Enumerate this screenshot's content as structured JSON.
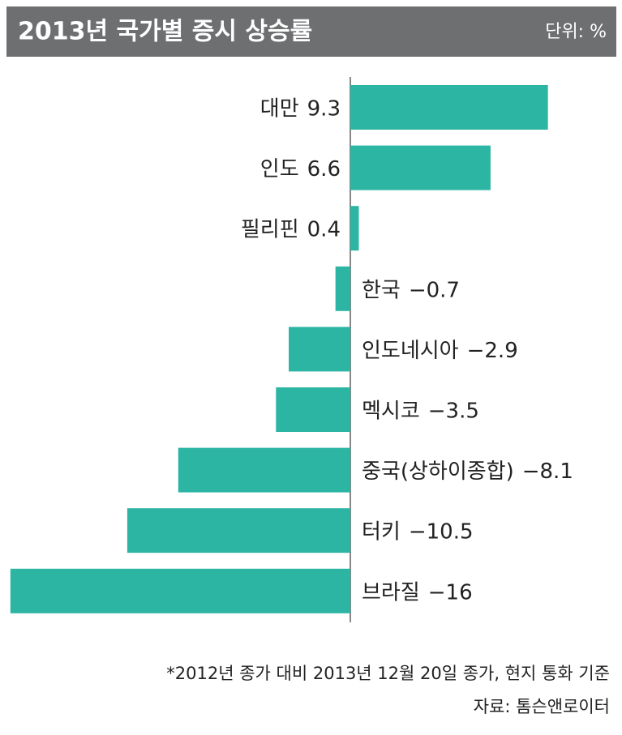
{
  "chart_data": {
    "type": "bar",
    "orientation": "horizontal",
    "title": "2013년 국가별 증시 상승률",
    "unit": "단위: %",
    "categories": [
      "대만",
      "인도",
      "필리핀",
      "한국",
      "인도네시아",
      "멕시코",
      "중국(상하이종합)",
      "터키",
      "브라질"
    ],
    "values": [
      9.3,
      6.6,
      0.4,
      -0.7,
      -2.9,
      -3.5,
      -8.1,
      -10.5,
      -16
    ],
    "value_labels": [
      "9.3",
      "6.6",
      "0.4",
      "−0.7",
      "−2.9",
      "−3.5",
      "−8.1",
      "−10.5",
      "−16"
    ],
    "color": "#2db5a3",
    "notes": [
      "*2012년 종가 대비 2013년 12월 20일 종가, 현지 통화 기준",
      "자료: 톰슨앤로이터"
    ]
  }
}
